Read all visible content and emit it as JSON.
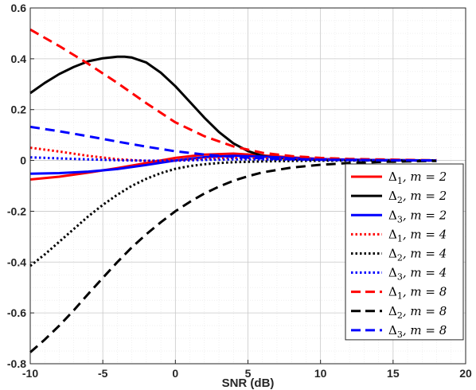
{
  "chart_data": {
    "type": "line",
    "xlabel": "SNR (dB)",
    "ylabel": "",
    "xlim": [
      -10,
      20
    ],
    "ylim": [
      -0.8,
      0.6
    ],
    "xticks": [
      -10,
      -5,
      0,
      5,
      10,
      15,
      20
    ],
    "yticks": [
      -0.8,
      -0.6,
      -0.4,
      -0.2,
      0,
      0.2,
      0.4,
      0.6
    ],
    "xtick_labels": [
      "-10",
      "-5",
      "0",
      "5",
      "10",
      "15",
      "20"
    ],
    "ytick_labels": [
      "-0.8",
      "-0.6",
      "-0.4",
      "-0.2",
      "0",
      "0.2",
      "0.4",
      "0.6"
    ],
    "grid": true,
    "minor_grid": true,
    "legend_position": "bottom-right",
    "series": [
      {
        "name": "Δ1, m = 2",
        "label_main": "Δ",
        "label_sub": "1",
        "label_rest": ", m = 2",
        "color": "#ff0000",
        "style": "solid",
        "x": [
          -10,
          -8,
          -6,
          -4,
          -2,
          0,
          2,
          4,
          6,
          8,
          10,
          12,
          14,
          16,
          18
        ],
        "y": [
          -0.075,
          -0.064,
          -0.048,
          -0.03,
          -0.01,
          0.01,
          0.023,
          0.027,
          0.02,
          0.012,
          0.006,
          0.003,
          0.001,
          0.0005,
          0.0
        ]
      },
      {
        "name": "Δ2, m = 2",
        "label_main": "Δ",
        "label_sub": "2",
        "label_rest": ", m = 2",
        "color": "#000000",
        "style": "solid",
        "x": [
          -10,
          -9,
          -8,
          -7,
          -6,
          -5,
          -4,
          -3.5,
          -3,
          -2,
          -1,
          0,
          1,
          2,
          3,
          4,
          5,
          6,
          7,
          8,
          10,
          12,
          14,
          16,
          18
        ],
        "y": [
          0.265,
          0.305,
          0.34,
          0.368,
          0.39,
          0.402,
          0.408,
          0.408,
          0.405,
          0.385,
          0.345,
          0.292,
          0.23,
          0.168,
          0.112,
          0.067,
          0.037,
          0.018,
          0.01,
          0.006,
          0.003,
          0.002,
          0.001,
          0.0005,
          0.0
        ]
      },
      {
        "name": "Δ3, m = 2",
        "label_main": "Δ",
        "label_sub": "3",
        "label_rest": ", m = 2",
        "color": "#0000ff",
        "style": "solid",
        "x": [
          -10,
          -8,
          -6,
          -4,
          -2,
          0,
          2,
          4,
          6,
          8,
          10,
          12,
          14,
          16,
          18
        ],
        "y": [
          -0.052,
          -0.05,
          -0.044,
          -0.034,
          -0.018,
          0.0,
          0.013,
          0.018,
          0.015,
          0.01,
          0.005,
          0.003,
          0.001,
          0.0005,
          0.0
        ]
      },
      {
        "name": "Δ1, m = 4",
        "label_main": "Δ",
        "label_sub": "1",
        "label_rest": ", m = 4",
        "color": "#ff0000",
        "style": "dotted",
        "x": [
          -10,
          -8,
          -6,
          -4,
          -2,
          0,
          2,
          4,
          6,
          8,
          10,
          12,
          14,
          16,
          18
        ],
        "y": [
          0.05,
          0.035,
          0.018,
          0.005,
          -0.002,
          0.0,
          0.007,
          0.01,
          0.008,
          0.005,
          0.003,
          0.001,
          0.0005,
          0.0,
          0.0
        ]
      },
      {
        "name": "Δ2, m = 4",
        "label_main": "Δ",
        "label_sub": "2",
        "label_rest": ", m = 4",
        "color": "#000000",
        "style": "dotted",
        "x": [
          -10,
          -9,
          -8,
          -7,
          -6,
          -5,
          -4,
          -3,
          -2,
          -1,
          0,
          1,
          2,
          3,
          4,
          6,
          8,
          10,
          12,
          14,
          16,
          18
        ],
        "y": [
          -0.415,
          -0.37,
          -0.32,
          -0.27,
          -0.22,
          -0.175,
          -0.135,
          -0.1,
          -0.072,
          -0.05,
          -0.033,
          -0.022,
          -0.015,
          -0.01,
          -0.007,
          -0.004,
          -0.002,
          -0.001,
          -0.0005,
          0.0,
          0.0,
          0.0
        ]
      },
      {
        "name": "Δ3, m = 4",
        "label_main": "Δ",
        "label_sub": "3",
        "label_rest": ", m = 4",
        "color": "#0000ff",
        "style": "dotted",
        "x": [
          -10,
          -8,
          -6,
          -4,
          -2,
          0,
          2,
          4,
          6,
          8,
          10,
          12,
          14,
          16,
          18
        ],
        "y": [
          0.012,
          0.008,
          0.004,
          0.001,
          -0.001,
          -0.001,
          0.002,
          0.004,
          0.004,
          0.003,
          0.002,
          0.001,
          0.0,
          0.0,
          0.0
        ]
      },
      {
        "name": "Δ1, m = 8",
        "label_main": "Δ",
        "label_sub": "1",
        "label_rest": ", m = 8",
        "color": "#ff0000",
        "style": "dashed",
        "x": [
          -10,
          -8,
          -6,
          -4,
          -2,
          0,
          2,
          4,
          6,
          8,
          10,
          12,
          14,
          16,
          18
        ],
        "y": [
          0.515,
          0.45,
          0.38,
          0.305,
          0.225,
          0.15,
          0.095,
          0.055,
          0.03,
          0.017,
          0.01,
          0.006,
          0.004,
          0.002,
          0.001
        ]
      },
      {
        "name": "Δ2, m = 8",
        "label_main": "Δ",
        "label_sub": "2",
        "label_rest": ", m = 8",
        "color": "#000000",
        "style": "dashed",
        "x": [
          -10,
          -9,
          -8,
          -7,
          -6,
          -5,
          -4,
          -3,
          -2,
          -1,
          0,
          1,
          2,
          3,
          4,
          5,
          6,
          8,
          10,
          12,
          14,
          16,
          18
        ],
        "y": [
          -0.755,
          -0.705,
          -0.65,
          -0.59,
          -0.525,
          -0.462,
          -0.4,
          -0.342,
          -0.29,
          -0.243,
          -0.2,
          -0.163,
          -0.13,
          -0.103,
          -0.08,
          -0.062,
          -0.047,
          -0.028,
          -0.017,
          -0.01,
          -0.006,
          -0.004,
          -0.002
        ]
      },
      {
        "name": "Δ3, m = 8",
        "label_main": "Δ",
        "label_sub": "3",
        "label_rest": ", m = 8",
        "color": "#0000ff",
        "style": "dashed",
        "x": [
          -10,
          -8,
          -6,
          -4,
          -2,
          0,
          2,
          4,
          6,
          8,
          10,
          12,
          14,
          16,
          18
        ],
        "y": [
          0.132,
          0.115,
          0.095,
          0.074,
          0.054,
          0.036,
          0.023,
          0.014,
          0.008,
          0.005,
          0.003,
          0.002,
          0.001,
          0.0005,
          0.0
        ]
      }
    ]
  }
}
